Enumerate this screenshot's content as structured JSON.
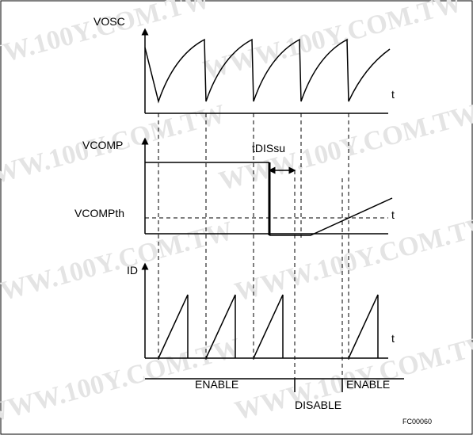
{
  "watermark": "WWW.100Y.COM.TW",
  "vosc": {
    "label": "VOSC",
    "axis": "t"
  },
  "vcomp": {
    "label": "VCOMP",
    "threshold": "VCOMPth",
    "delay": "tDISsu",
    "axis": "t"
  },
  "id": {
    "label": "ID",
    "axis": "t"
  },
  "states": [
    "ENABLE",
    "DISABLE",
    "ENABLE"
  ],
  "code": "FC00060"
}
